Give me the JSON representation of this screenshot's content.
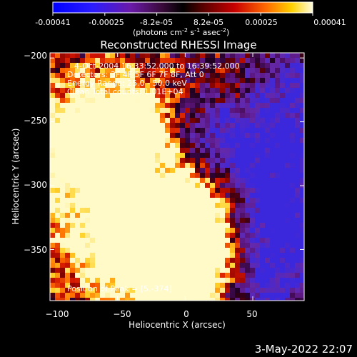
{
  "colorbar": {
    "ticks": [
      "-0.00041",
      "-0.00025",
      "-8.2e-05",
      "8.2e-05",
      "0.00025",
      "0.00041"
    ],
    "units_line1": "(photons cm",
    "units_sup1": "-2",
    "units_line2": " s",
    "units_sup2": "-1",
    "units_line3": " asec",
    "units_sup3": "-2",
    "units_close": ")"
  },
  "title": "Reconstructed RHESSI Image",
  "info": {
    "line1": "4-Oct-2004 16:33:52.000 to 16:39:52.000",
    "line2": "Detectors: 3F 4F 5F 6F 7F 8F, Att 0",
    "line3": "Energy Range: 25.0 - 50.0 keV",
    "line4": "Clean      Total counts: 1.01E+04",
    "peak": "Position of Peak = [5,-374]"
  },
  "axes": {
    "xlabel": "Heliocentric X (arcsec)",
    "ylabel": "Heliocentric Y (arcsec)",
    "xticks": [
      {
        "label": "−100",
        "value": -100
      },
      {
        "label": "−50",
        "value": -50
      },
      {
        "label": "0",
        "value": 0
      },
      {
        "label": "50",
        "value": 50
      }
    ],
    "yticks": [
      {
        "label": "−200",
        "value": -200
      },
      {
        "label": "−250",
        "value": -250
      },
      {
        "label": "−300",
        "value": -300
      },
      {
        "label": "−350",
        "value": -350
      }
    ],
    "xlim": [
      -100,
      88
    ],
    "ylim": [
      -390,
      -196
    ]
  },
  "footer_date": "3-May-2022 22:07"
}
